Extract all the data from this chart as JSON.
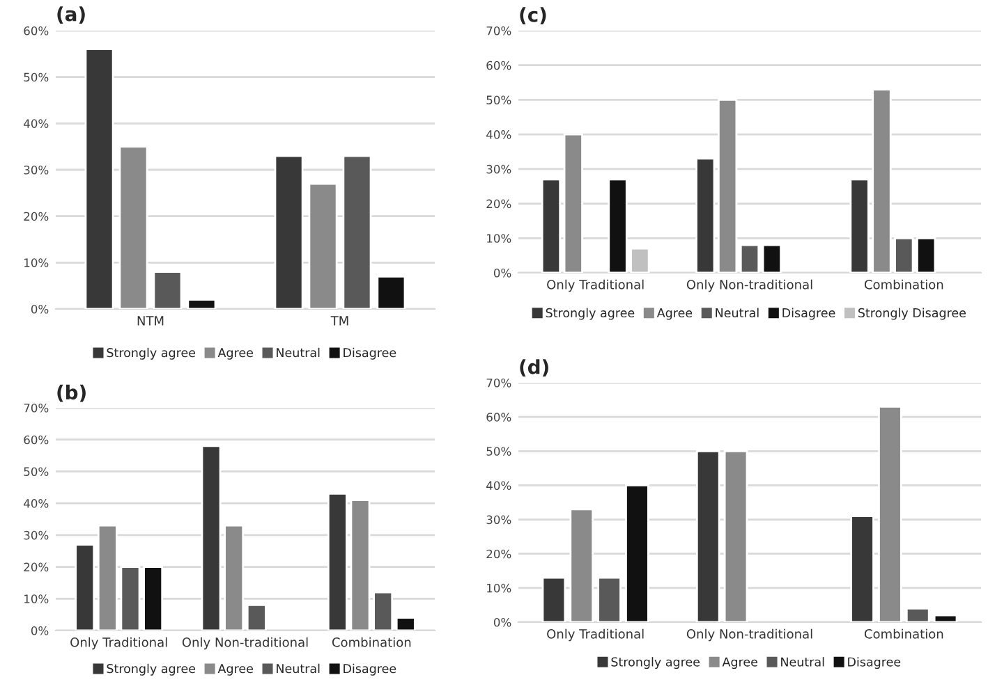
{
  "chart_data": [
    {
      "type": "bar",
      "title": "(a)",
      "categories": [
        "NTM",
        "TM"
      ],
      "ylim": [
        0,
        60
      ],
      "yticks": [
        {
          "value": 0,
          "label": "0%"
        },
        {
          "value": 10,
          "label": "10%"
        },
        {
          "value": 20,
          "label": "20%"
        },
        {
          "value": 30,
          "label": "30%"
        },
        {
          "value": 40,
          "label": "40%"
        },
        {
          "value": 50,
          "label": "50%"
        },
        {
          "value": 60,
          "label": "60%"
        }
      ],
      "grid": "y",
      "legend": "bottom",
      "series": [
        {
          "name": "Strongly agree",
          "color": "#383838",
          "values": [
            56,
            33
          ]
        },
        {
          "name": "Agree",
          "color": "#8a8a8a",
          "values": [
            35,
            27
          ]
        },
        {
          "name": "Neutral",
          "color": "#595959",
          "values": [
            8,
            33
          ]
        },
        {
          "name": "Disagree",
          "color": "#111111",
          "values": [
            2,
            7
          ]
        }
      ]
    },
    {
      "type": "bar",
      "title": "(c)",
      "categories": [
        "Only Traditional",
        "Only Non-traditional",
        "Combination"
      ],
      "ylim": [
        0,
        70
      ],
      "yticks": [
        {
          "value": 0,
          "label": "0%"
        },
        {
          "value": 10,
          "label": "10%"
        },
        {
          "value": 20,
          "label": "20%"
        },
        {
          "value": 30,
          "label": "30%"
        },
        {
          "value": 40,
          "label": "40%"
        },
        {
          "value": 50,
          "label": "50%"
        },
        {
          "value": 60,
          "label": "60%"
        },
        {
          "value": 70,
          "label": "70%"
        }
      ],
      "grid": "y",
      "legend": "bottom",
      "series": [
        {
          "name": "Strongly agree",
          "color": "#383838",
          "values": [
            27,
            33,
            27
          ]
        },
        {
          "name": "Agree",
          "color": "#8a8a8a",
          "values": [
            40,
            50,
            53
          ]
        },
        {
          "name": "Neutral",
          "color": "#595959",
          "values": [
            null,
            8,
            10
          ]
        },
        {
          "name": "Disagree",
          "color": "#111111",
          "values": [
            27,
            8,
            10
          ]
        },
        {
          "name": "Strongly Disagree",
          "color": "#c0c0c0",
          "values": [
            7,
            null,
            null
          ]
        }
      ]
    },
    {
      "type": "bar",
      "title": "(b)",
      "categories": [
        "Only Traditional",
        "Only Non-traditional",
        "Combination"
      ],
      "ylim": [
        0,
        70
      ],
      "yticks": [
        {
          "value": 0,
          "label": "0%"
        },
        {
          "value": 10,
          "label": "10%"
        },
        {
          "value": 20,
          "label": "20%"
        },
        {
          "value": 30,
          "label": "30%"
        },
        {
          "value": 40,
          "label": "40%"
        },
        {
          "value": 50,
          "label": "50%"
        },
        {
          "value": 60,
          "label": "60%"
        },
        {
          "value": 70,
          "label": "70%"
        }
      ],
      "grid": "y",
      "legend": "bottom",
      "series": [
        {
          "name": "Strongly agree",
          "color": "#383838",
          "values": [
            27,
            58,
            43
          ]
        },
        {
          "name": "Agree",
          "color": "#8a8a8a",
          "values": [
            33,
            33,
            41
          ]
        },
        {
          "name": "Neutral",
          "color": "#595959",
          "values": [
            20,
            8,
            12
          ]
        },
        {
          "name": "Disagree",
          "color": "#111111",
          "values": [
            20,
            null,
            4
          ]
        }
      ]
    },
    {
      "type": "bar",
      "title": "(d)",
      "categories": [
        "Only Traditional",
        "Only Non-traditional",
        "Combination"
      ],
      "ylim": [
        0,
        70
      ],
      "yticks": [
        {
          "value": 0,
          "label": "0%"
        },
        {
          "value": 10,
          "label": "10%"
        },
        {
          "value": 20,
          "label": "20%"
        },
        {
          "value": 30,
          "label": "30%"
        },
        {
          "value": 40,
          "label": "40%"
        },
        {
          "value": 50,
          "label": "50%"
        },
        {
          "value": 60,
          "label": "60%"
        },
        {
          "value": 70,
          "label": "70%"
        }
      ],
      "grid": "y",
      "legend": "bottom",
      "series": [
        {
          "name": "Strongly agree",
          "color": "#383838",
          "values": [
            13,
            50,
            31
          ]
        },
        {
          "name": "Agree",
          "color": "#8a8a8a",
          "values": [
            33,
            50,
            63
          ]
        },
        {
          "name": "Neutral",
          "color": "#595959",
          "values": [
            13,
            null,
            4
          ]
        },
        {
          "name": "Disagree",
          "color": "#111111",
          "values": [
            40,
            null,
            2
          ]
        }
      ]
    }
  ]
}
